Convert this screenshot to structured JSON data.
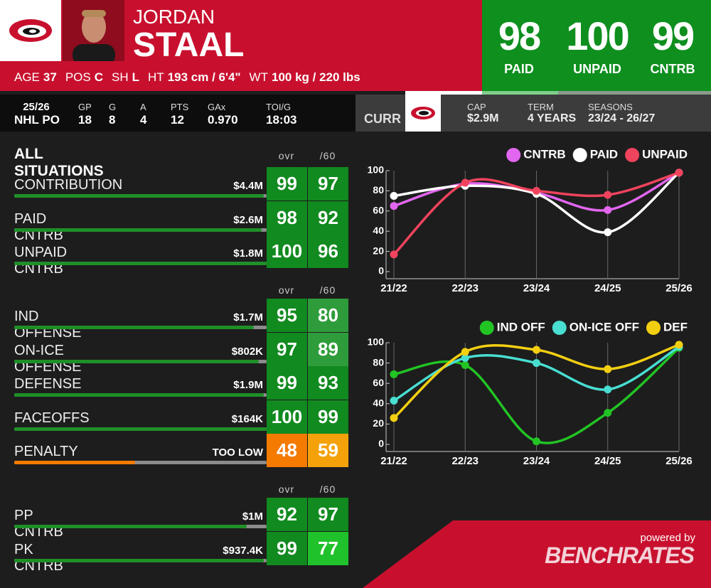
{
  "header": {
    "first_name": "JORDAN",
    "last_name": "STAAL",
    "bio": [
      {
        "label": "AGE",
        "value": "37"
      },
      {
        "label": "POS",
        "value": "C"
      },
      {
        "label": "SH",
        "value": "L"
      },
      {
        "label": "HT",
        "value": "193 cm / 6'4\""
      },
      {
        "label": "WT",
        "value": "100 kg / 220 lbs"
      }
    ]
  },
  "ratings": [
    {
      "value": 98,
      "label": "PAID"
    },
    {
      "value": 100,
      "label": "UNPAID"
    },
    {
      "value": 99,
      "label": "CNTRB"
    }
  ],
  "stats": {
    "season": "25/26",
    "league": "NHL PO",
    "columns": [
      {
        "label": "GP",
        "value": "18"
      },
      {
        "label": "G",
        "value": "8"
      },
      {
        "label": "A",
        "value": "4"
      },
      {
        "label": "PTS",
        "value": "12"
      },
      {
        "label": "GAx",
        "value": "0.970"
      },
      {
        "label": "TOI/G",
        "value": "18:03"
      }
    ]
  },
  "contract": {
    "status": "CURR",
    "fields": [
      {
        "label": "CAP",
        "value": "$2.9M"
      },
      {
        "label": "TERM",
        "value": "4 YEARS"
      },
      {
        "label": "SEASONS",
        "value": "23/24 - 26/27"
      }
    ]
  },
  "sections": [
    {
      "title": "ALL SITUATIONS",
      "columns": [
        "ovr",
        "/60"
      ],
      "rows": [
        {
          "name": "CONTRIBUTION",
          "value": "$4.4M",
          "ovr": 99,
          "per60": 97
        },
        {
          "name": "PAID CNTRB",
          "value": "$2.6M",
          "ovr": 98,
          "per60": 92
        },
        {
          "name": "UNPAID CNTRB",
          "value": "$1.8M",
          "ovr": 100,
          "per60": 96
        }
      ]
    },
    {
      "columns": [
        "ovr",
        "/60"
      ],
      "rows": [
        {
          "name": "IND OFFENSE",
          "value": "$1.7M",
          "ovr": 95,
          "per60": 80
        },
        {
          "name": "ON-ICE OFFENSE",
          "value": "$802K",
          "ovr": 97,
          "per60": 89
        },
        {
          "name": "DEFENSE",
          "value": "$1.9M",
          "ovr": 99,
          "per60": 93
        },
        {
          "name": "FACEOFFS",
          "value": "$164K",
          "ovr": 100,
          "per60": 99
        },
        {
          "name": "PENALTY",
          "value": "TOO LOW",
          "ovr": 48,
          "per60": 59
        }
      ]
    },
    {
      "columns": [
        "ovr",
        "/60"
      ],
      "rows": [
        {
          "name": "PP CNTRB",
          "value": "$1M",
          "ovr": 92,
          "per60": 97
        },
        {
          "name": "PK CNTRB",
          "value": "$937.4K",
          "ovr": 99,
          "per60": 77
        }
      ]
    }
  ],
  "chart_data": [
    {
      "type": "line",
      "categories": [
        "21/22",
        "22/23",
        "23/24",
        "24/25",
        "25/26"
      ],
      "ylim": [
        0,
        100
      ],
      "yticks": [
        0,
        20,
        40,
        60,
        80,
        100
      ],
      "legend": "top-right",
      "series": [
        {
          "name": "CNTRB",
          "color": "#e266ef",
          "values": [
            65,
            87,
            78,
            61,
            98
          ]
        },
        {
          "name": "PAID",
          "color": "#ffffff",
          "values": [
            75,
            85,
            77,
            39,
            98
          ]
        },
        {
          "name": "UNPAID",
          "color": "#f0435d",
          "values": [
            17,
            88,
            80,
            76,
            98
          ]
        }
      ]
    },
    {
      "type": "line",
      "categories": [
        "21/22",
        "22/23",
        "23/24",
        "24/25",
        "25/26"
      ],
      "ylim": [
        0,
        100
      ],
      "yticks": [
        0,
        20,
        40,
        60,
        80,
        100
      ],
      "legend": "top-right",
      "series": [
        {
          "name": "IND OFF",
          "color": "#22c424",
          "values": [
            69,
            78,
            3,
            31,
            95
          ]
        },
        {
          "name": "ON-ICE OFF",
          "color": "#48ded2",
          "values": [
            43,
            85,
            80,
            54,
            96
          ]
        },
        {
          "name": "DEF",
          "color": "#f3cf12",
          "values": [
            26,
            91,
            93,
            74,
            98
          ]
        }
      ]
    }
  ],
  "footer": {
    "powered_by": "powered by",
    "brand": "BENCHRATES"
  }
}
